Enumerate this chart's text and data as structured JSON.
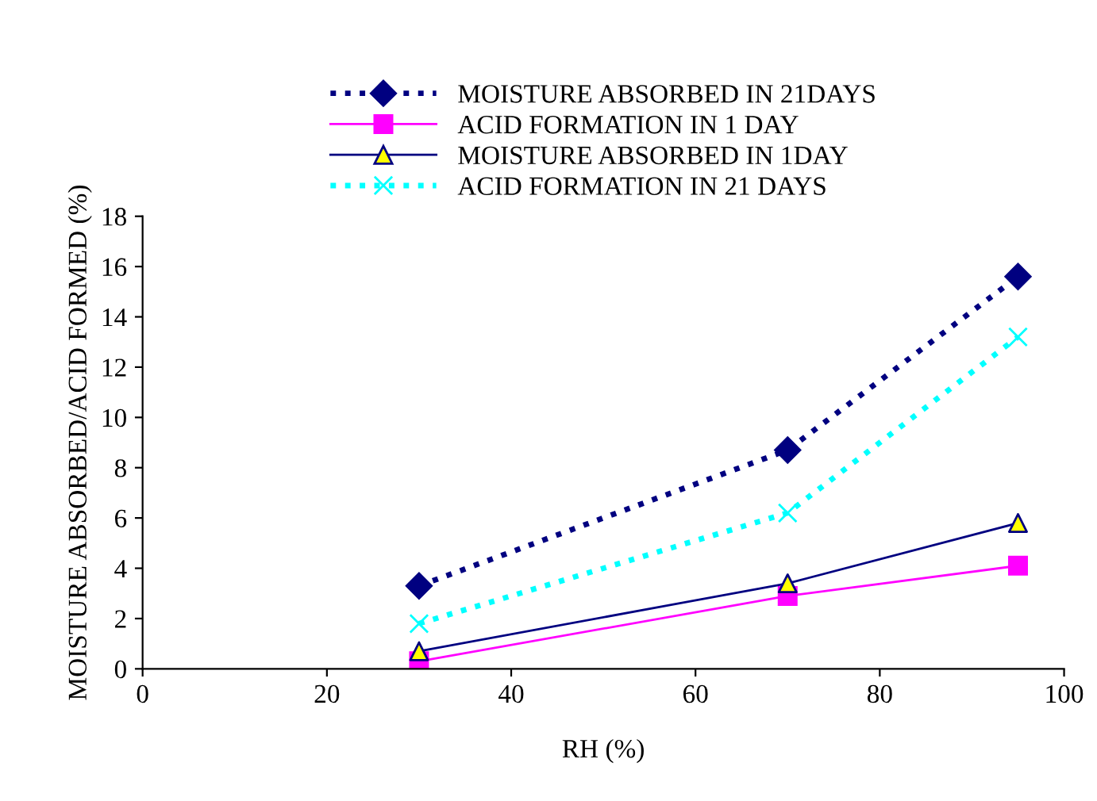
{
  "chart_data": {
    "type": "line",
    "xlabel": "RH (%)",
    "ylabel": "MOISTURE ABSORBED/ACID FORMED (%)",
    "x": [
      30,
      70,
      95
    ],
    "series": [
      {
        "name": "MOISTURE ABSORBED IN 21DAYS",
        "color": "#000080",
        "values": [
          3.3,
          8.7,
          15.6
        ],
        "marker": "diamond",
        "line_style": "dotted"
      },
      {
        "name": "ACID FORMATION IN 1 DAY",
        "color": "#ff00ff",
        "values": [
          0.3,
          2.9,
          4.1
        ],
        "marker": "square",
        "line_style": "solid"
      },
      {
        "name": "MOISTURE ABSORBED IN 1DAY",
        "color": "#000080",
        "values": [
          0.7,
          3.4,
          5.8
        ],
        "colors": [
          "#ffff00",
          "#ffff00",
          "#ffff00"
        ],
        "marker": "triangle",
        "line_style": "solid"
      },
      {
        "name": "ACID FORMATION IN 21 DAYS",
        "color": "#00ffff",
        "values": [
          1.8,
          6.2,
          13.2
        ],
        "marker": "cross",
        "line_style": "dotted"
      }
    ],
    "xlim": [
      0,
      100
    ],
    "xticks": [
      0,
      20,
      40,
      60,
      80,
      100
    ],
    "ylim": [
      0,
      18
    ],
    "yticks": [
      0,
      2,
      4,
      6,
      8,
      10,
      12,
      14,
      16,
      18
    ],
    "grid": false,
    "legend": "top"
  }
}
